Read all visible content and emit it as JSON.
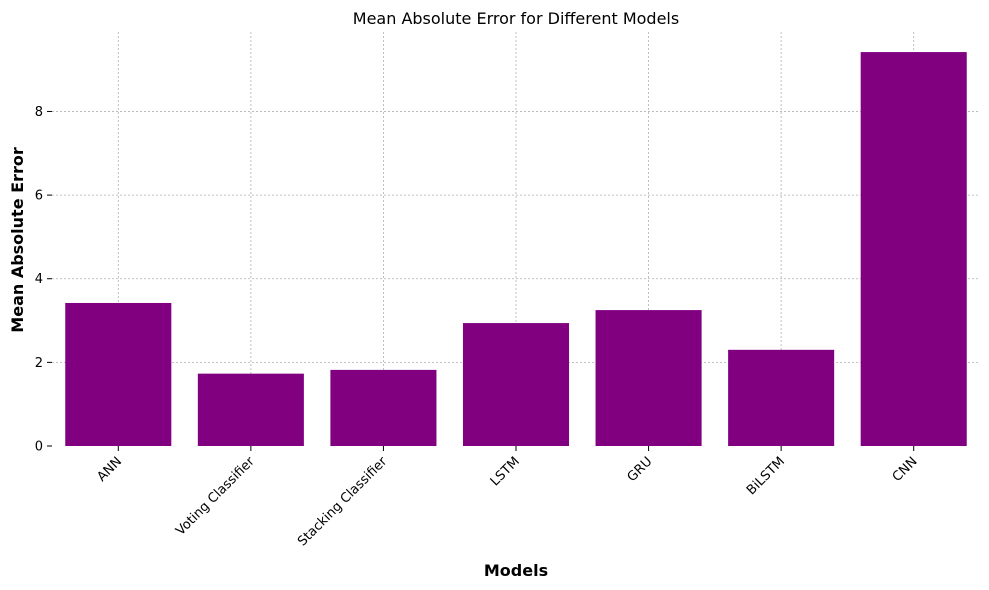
{
  "chart_data": {
    "type": "bar",
    "title": "Mean Absolute Error for Different Models",
    "xlabel": "Models",
    "ylabel": "Mean Absolute Error",
    "categories": [
      "ANN",
      "Voting Classifier",
      "Stacking Classifier",
      "LSTM",
      "GRU",
      "BiLSTM",
      "CNN"
    ],
    "values": [
      3.42,
      1.73,
      1.82,
      2.94,
      3.25,
      2.3,
      9.42
    ],
    "yticks": [
      0,
      2,
      4,
      6,
      8
    ],
    "ylim": [
      0,
      9.9
    ],
    "grid": true,
    "bar_color": "#800080"
  }
}
